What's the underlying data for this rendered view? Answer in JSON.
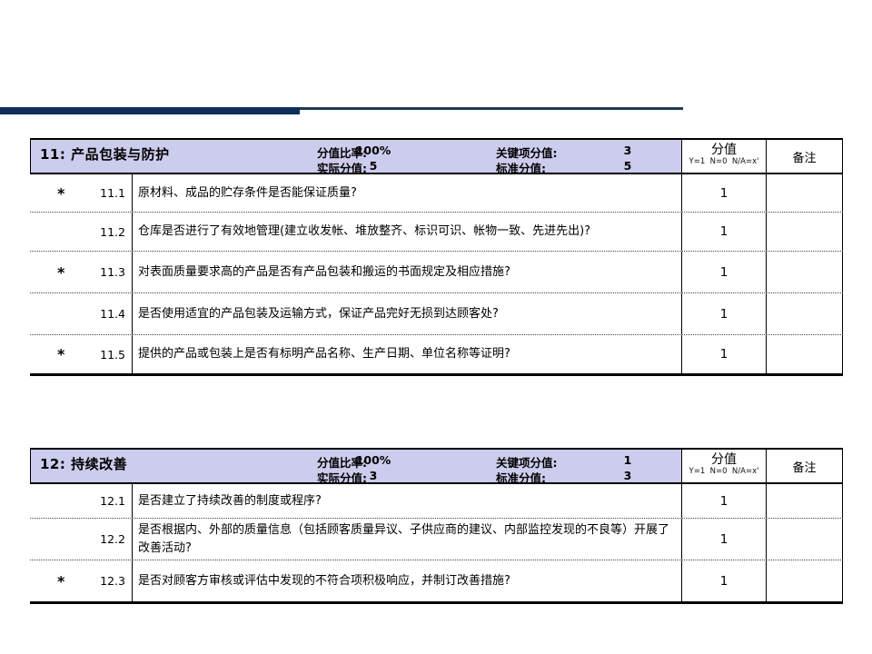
{
  "colors": {
    "decor_bar": "#0f2e5c",
    "decor_line": "#1e3a50",
    "header_band": "#cccced"
  },
  "score_header": {
    "score_label": "分值",
    "score_key": "Y=1  N=0  N/A=x'",
    "remark_label": "备注"
  },
  "sections": [
    {
      "title": "11: 产品包装与防护",
      "ratio_label": "分值比率:",
      "ratio_value": "100%",
      "actual_label": "实际分值:",
      "actual_value": "5",
      "key_label": "关键项分值:",
      "key_value": "3",
      "std_label": "标准分值:",
      "std_value": "5",
      "rows": [
        {
          "star": "*",
          "no": "11.1",
          "question": "原材料、成品的贮存条件是否能保证质量?",
          "score": "1",
          "remark": ""
        },
        {
          "star": "",
          "no": "11.2",
          "question": "仓库是否进行了有效地管理(建立收发帐、堆放整齐、标识可识、帐物一致、先进先出)?",
          "score": "1",
          "remark": ""
        },
        {
          "star": "*",
          "no": "11.3",
          "question": "对表面质量要求高的产品是否有产品包装和搬运的书面规定及相应措施?",
          "score": "1",
          "remark": ""
        },
        {
          "star": "",
          "no": "11.4",
          "question": "是否使用适宜的产品包装及运输方式，保证产品完好无损到达顾客处?",
          "score": "1",
          "remark": ""
        },
        {
          "star": "*",
          "no": "11.5",
          "question": "提供的产品或包装上是否有标明产品名称、生产日期、单位名称等证明?",
          "score": "1",
          "remark": ""
        }
      ]
    },
    {
      "title": "12: 持续改善",
      "ratio_label": "分值比率:",
      "ratio_value": "100%",
      "actual_label": "实际分值:",
      "actual_value": "3",
      "key_label": "关键项分值:",
      "key_value": "1",
      "std_label": "标准分值:",
      "std_value": "3",
      "rows": [
        {
          "star": "",
          "no": "12.1",
          "question": "是否建立了持续改善的制度或程序?",
          "score": "1",
          "remark": ""
        },
        {
          "star": "",
          "no": "12.2",
          "question": "是否根据内、外部的质量信息（包括顾客质量异议、子供应商的建议、内部监控发现的不良等）开展了改善活动?",
          "score": "1",
          "remark": ""
        },
        {
          "star": "*",
          "no": "12.3",
          "question": "是否对顾客方审核或评估中发现的不符合项积极响应，并制订改善措施?",
          "score": "1",
          "remark": ""
        }
      ]
    }
  ]
}
